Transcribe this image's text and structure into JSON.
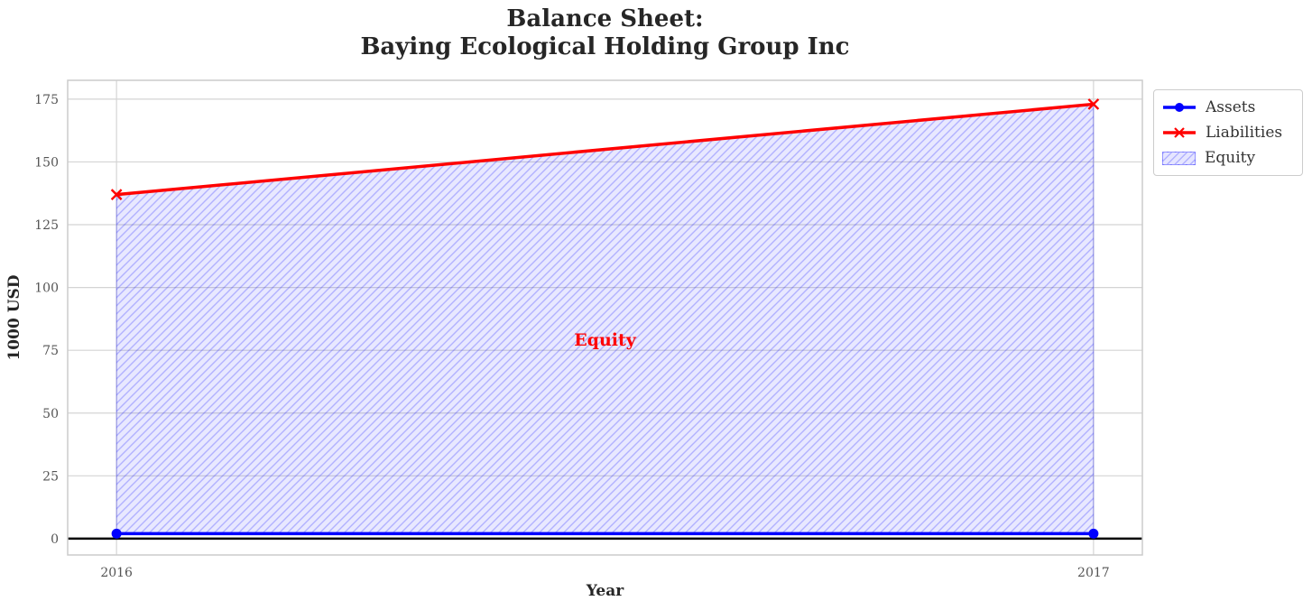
{
  "page": {
    "background": "#ffffff"
  },
  "chart_data": {
    "type": "area",
    "title": "Balance Sheet:\nBaying Ecological Holding Group Inc",
    "xlabel": "Year",
    "ylabel": "1000 USD",
    "x": [
      2016,
      2017
    ],
    "series": [
      {
        "name": "Assets",
        "values": [
          2,
          2
        ],
        "color": "#0000ff",
        "marker": "circle",
        "linewidth": 3.5
      },
      {
        "name": "Liabilities",
        "values": [
          137,
          173
        ],
        "color": "#ff0000",
        "marker": "x",
        "linewidth": 3.5
      }
    ],
    "area": {
      "name": "Equity",
      "between": [
        "Assets",
        "Liabilities"
      ],
      "hatch": "//",
      "fill_color": "rgba(0,0,255,0.09)",
      "hatch_color": "rgba(0,0,255,0.24)",
      "edge_color": "rgba(0,0,255,0.30)"
    },
    "annotation": {
      "text": "Equity",
      "x": 2016.5,
      "y": 79,
      "color": "#ff0000"
    },
    "xticks": [
      2016,
      2017
    ],
    "yticks": [
      0,
      25,
      50,
      75,
      100,
      125,
      150,
      175
    ],
    "xlim": [
      2015.95,
      2017.05
    ],
    "ylim": [
      -6.5,
      182.5
    ],
    "grid": true,
    "grid_color": "#d4d4d4",
    "axes_border_color": "#cccccc",
    "zero_line_color": "#000000",
    "tick_label_color": "#555555",
    "legend": {
      "position": "outside-top-right",
      "entries": [
        "Assets",
        "Liabilities",
        "Equity"
      ]
    }
  }
}
